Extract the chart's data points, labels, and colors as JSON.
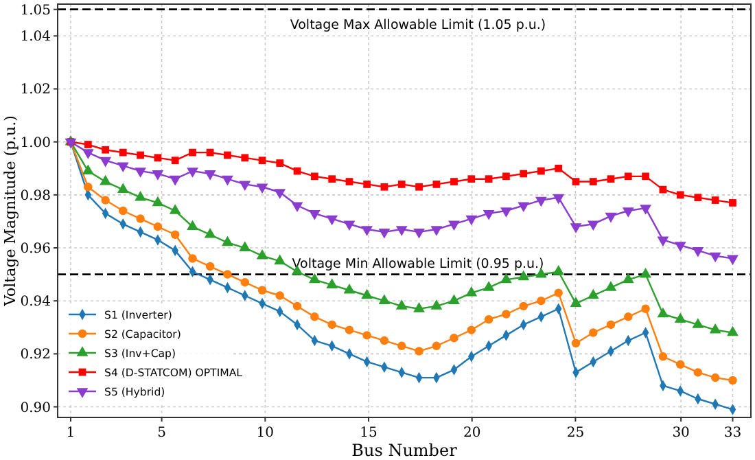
{
  "chart_data": {
    "type": "line",
    "xlabel": "Bus Number",
    "ylabel": "Voltage Magnitude (p.u.)",
    "x": [
      1,
      1.84,
      2.68,
      3.53,
      4.37,
      5.21,
      6.05,
      6.89,
      7.74,
      8.58,
      9.42,
      10.26,
      11.11,
      11.95,
      12.79,
      13.63,
      14.47,
      15.32,
      16.16,
      17,
      17.84,
      18.68,
      19.53,
      20.37,
      21.21,
      22.05,
      22.89,
      23.74,
      24.58,
      25.42,
      26.26,
      27.11,
      27.95,
      28.79,
      29.63,
      30.47,
      31.32,
      32.16,
      33
    ],
    "xlim": [
      0.37,
      33.88
    ],
    "xticks": [
      1,
      {
        "value": 5.4,
        "label": "5"
      },
      {
        "value": 10.4,
        "label": "10"
      },
      {
        "value": 15.4,
        "label": "15"
      },
      {
        "value": 20.4,
        "label": "20"
      },
      {
        "value": 25.4,
        "label": "25"
      },
      {
        "value": 30.5,
        "label": "30"
      },
      33
    ],
    "ylim": [
      0.896,
      1.052
    ],
    "yticks": [
      {
        "value": 0.9,
        "label": "0.90"
      },
      {
        "value": 0.92,
        "label": "0.92"
      },
      {
        "value": 0.94,
        "label": "0.94"
      },
      {
        "value": 0.96,
        "label": "0.96"
      },
      {
        "value": 0.98,
        "label": "0.98"
      },
      {
        "value": 1.0,
        "label": "1.00"
      },
      {
        "value": 1.02,
        "label": "1.02"
      },
      {
        "value": 1.04,
        "label": "1.04"
      },
      {
        "value": 1.05,
        "label": "1.05"
      }
    ],
    "grid": true,
    "legend": "bottom left",
    "line_style": "solid",
    "ref_lines": [
      {
        "axis": "y",
        "value": 1.05,
        "label": "Voltage Max Allowable Limit (1.05 p.u.)",
        "color": "#000000",
        "line_style": "dashed"
      },
      {
        "axis": "y",
        "value": 0.95,
        "label": "Voltage Min Allowable Limit (0.95 p.u.)",
        "color": "#000000",
        "line_style": "dashed"
      }
    ],
    "series": [
      {
        "name": "S1 (Inverter)",
        "color": "#1f77b4",
        "marker": "diamond",
        "values": [
          1.0,
          0.98,
          0.973,
          0.969,
          0.966,
          0.963,
          0.959,
          0.951,
          0.948,
          0.945,
          0.942,
          0.939,
          0.936,
          0.931,
          0.925,
          0.923,
          0.92,
          0.917,
          0.915,
          0.913,
          0.911,
          0.911,
          0.914,
          0.919,
          0.923,
          0.927,
          0.931,
          0.934,
          0.937,
          0.913,
          0.917,
          0.921,
          0.925,
          0.928,
          0.908,
          0.906,
          0.903,
          0.901,
          0.899
        ]
      },
      {
        "name": "S2 (Capacitor)",
        "color": "#ff7f0e",
        "marker": "circle",
        "values": [
          1.0,
          0.983,
          0.978,
          0.974,
          0.971,
          0.968,
          0.965,
          0.956,
          0.953,
          0.95,
          0.947,
          0.944,
          0.942,
          0.938,
          0.934,
          0.931,
          0.929,
          0.927,
          0.925,
          0.923,
          0.921,
          0.923,
          0.926,
          0.929,
          0.933,
          0.935,
          0.938,
          0.94,
          0.943,
          0.924,
          0.928,
          0.931,
          0.934,
          0.937,
          0.919,
          0.916,
          0.913,
          0.911,
          0.91
        ]
      },
      {
        "name": "S3 (Inv+Cap)",
        "color": "#2ca02c",
        "marker": "triangle",
        "values": [
          1.0,
          0.989,
          0.985,
          0.982,
          0.979,
          0.977,
          0.974,
          0.968,
          0.965,
          0.962,
          0.96,
          0.957,
          0.955,
          0.951,
          0.948,
          0.946,
          0.944,
          0.942,
          0.94,
          0.938,
          0.937,
          0.938,
          0.94,
          0.943,
          0.945,
          0.948,
          0.949,
          0.95,
          0.951,
          0.939,
          0.942,
          0.945,
          0.948,
          0.95,
          0.935,
          0.933,
          0.931,
          0.929,
          0.928
        ]
      },
      {
        "name": "S4 (D-STATCOM) OPTIMAL",
        "color": "#ff0000",
        "marker": "square",
        "values": [
          1.0,
          0.999,
          0.997,
          0.996,
          0.995,
          0.994,
          0.993,
          0.996,
          0.996,
          0.995,
          0.994,
          0.993,
          0.992,
          0.989,
          0.987,
          0.986,
          0.985,
          0.984,
          0.983,
          0.984,
          0.983,
          0.984,
          0.985,
          0.986,
          0.986,
          0.987,
          0.988,
          0.989,
          0.99,
          0.985,
          0.985,
          0.986,
          0.987,
          0.987,
          0.982,
          0.98,
          0.979,
          0.978,
          0.977
        ]
      },
      {
        "name": "S5 (Hybrid)",
        "color": "#8a3ccf",
        "marker": "triangle-down",
        "values": [
          1.0,
          0.996,
          0.993,
          0.991,
          0.989,
          0.988,
          0.986,
          0.989,
          0.988,
          0.986,
          0.984,
          0.983,
          0.981,
          0.976,
          0.973,
          0.971,
          0.969,
          0.967,
          0.966,
          0.967,
          0.966,
          0.967,
          0.969,
          0.971,
          0.973,
          0.974,
          0.976,
          0.978,
          0.979,
          0.968,
          0.969,
          0.972,
          0.974,
          0.975,
          0.963,
          0.961,
          0.959,
          0.957,
          0.956
        ]
      }
    ]
  }
}
